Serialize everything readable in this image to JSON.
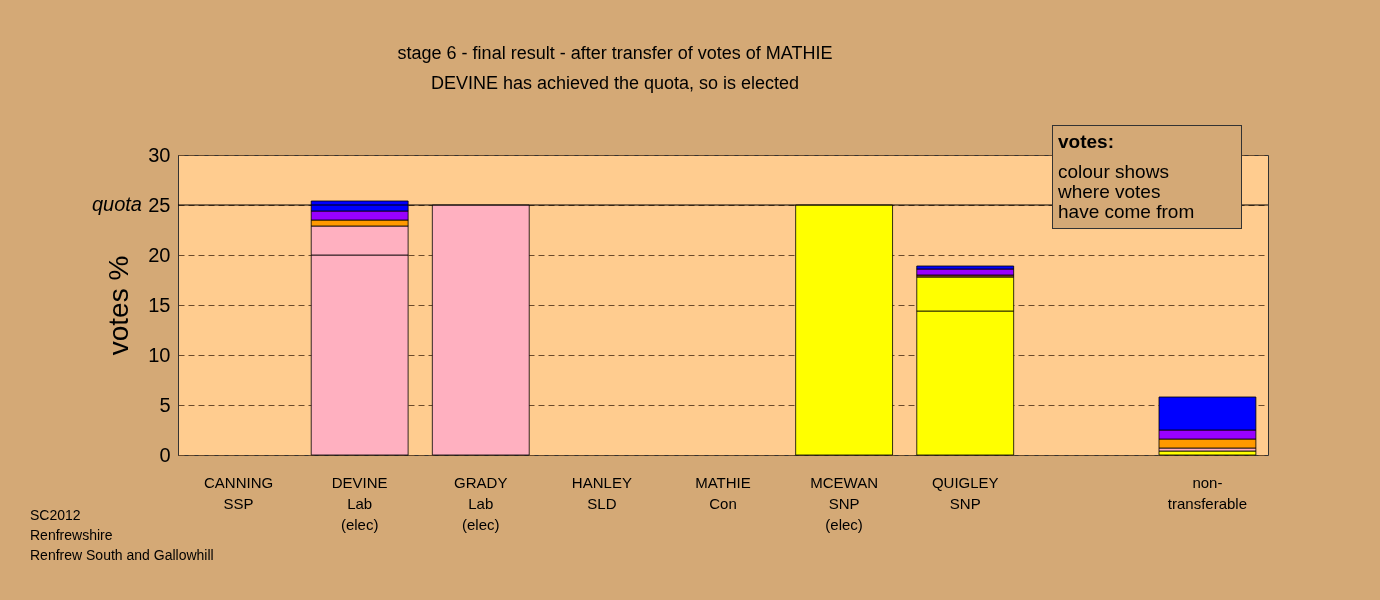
{
  "chart_data": {
    "type": "bar",
    "stacked": true,
    "title": "stage 6 - final result - after transfer of votes of MATHIE",
    "subtitle": "DEVINE has achieved the quota, so is elected",
    "ylabel": "votes %",
    "categories": [
      "CANNING\nSSP",
      "DEVINE\nLab\n(elec)",
      "GRADY\nLab\n(elec)",
      "HANLEY\nSLD",
      "MATHIE\nCon",
      "MCEWAN\nSNP\n(elec)",
      "QUIGLEY\nSNP",
      null,
      "non-\ntransferable"
    ],
    "series": [
      {
        "color": "#ffff00",
        "values": [
          null,
          null,
          null,
          null,
          null,
          25,
          14.4,
          null,
          0.4
        ]
      },
      {
        "color": "#ffb0c0",
        "values": [
          null,
          20.0,
          25,
          null,
          null,
          null,
          null,
          null,
          0.3
        ]
      },
      {
        "color": "#ffb0c0",
        "values": [
          null,
          2.9,
          null,
          null,
          null,
          null,
          null,
          null,
          null
        ]
      },
      {
        "color": "#ffff00",
        "values": [
          null,
          null,
          null,
          null,
          null,
          null,
          3.4,
          null,
          null
        ]
      },
      {
        "color": "#a0522d",
        "values": [
          null,
          null,
          null,
          null,
          null,
          null,
          0.2,
          null,
          null
        ]
      },
      {
        "color": "#ff9900",
        "values": [
          null,
          0.6,
          null,
          null,
          null,
          null,
          null,
          null,
          0.9
        ]
      },
      {
        "color": "#9900ff",
        "values": [
          null,
          0.9,
          null,
          null,
          null,
          null,
          0.6,
          null,
          0.9
        ]
      },
      {
        "color": "#0000ff",
        "values": [
          null,
          1.0,
          null,
          null,
          null,
          null,
          0.3,
          null,
          3.3
        ]
      }
    ],
    "ylim": [
      0,
      30
    ],
    "yticks": [
      0,
      5,
      10,
      15,
      20,
      25,
      30
    ],
    "grid": "y",
    "legend": false,
    "ref_lines": [
      {
        "axis": "y",
        "value": 25,
        "label": "quota"
      }
    ],
    "annotations": [
      "votes:",
      "colour shows",
      "where votes",
      "have come from",
      "SC2012",
      "Renfrewshire",
      "Renfrew South and Gallowhill"
    ]
  }
}
